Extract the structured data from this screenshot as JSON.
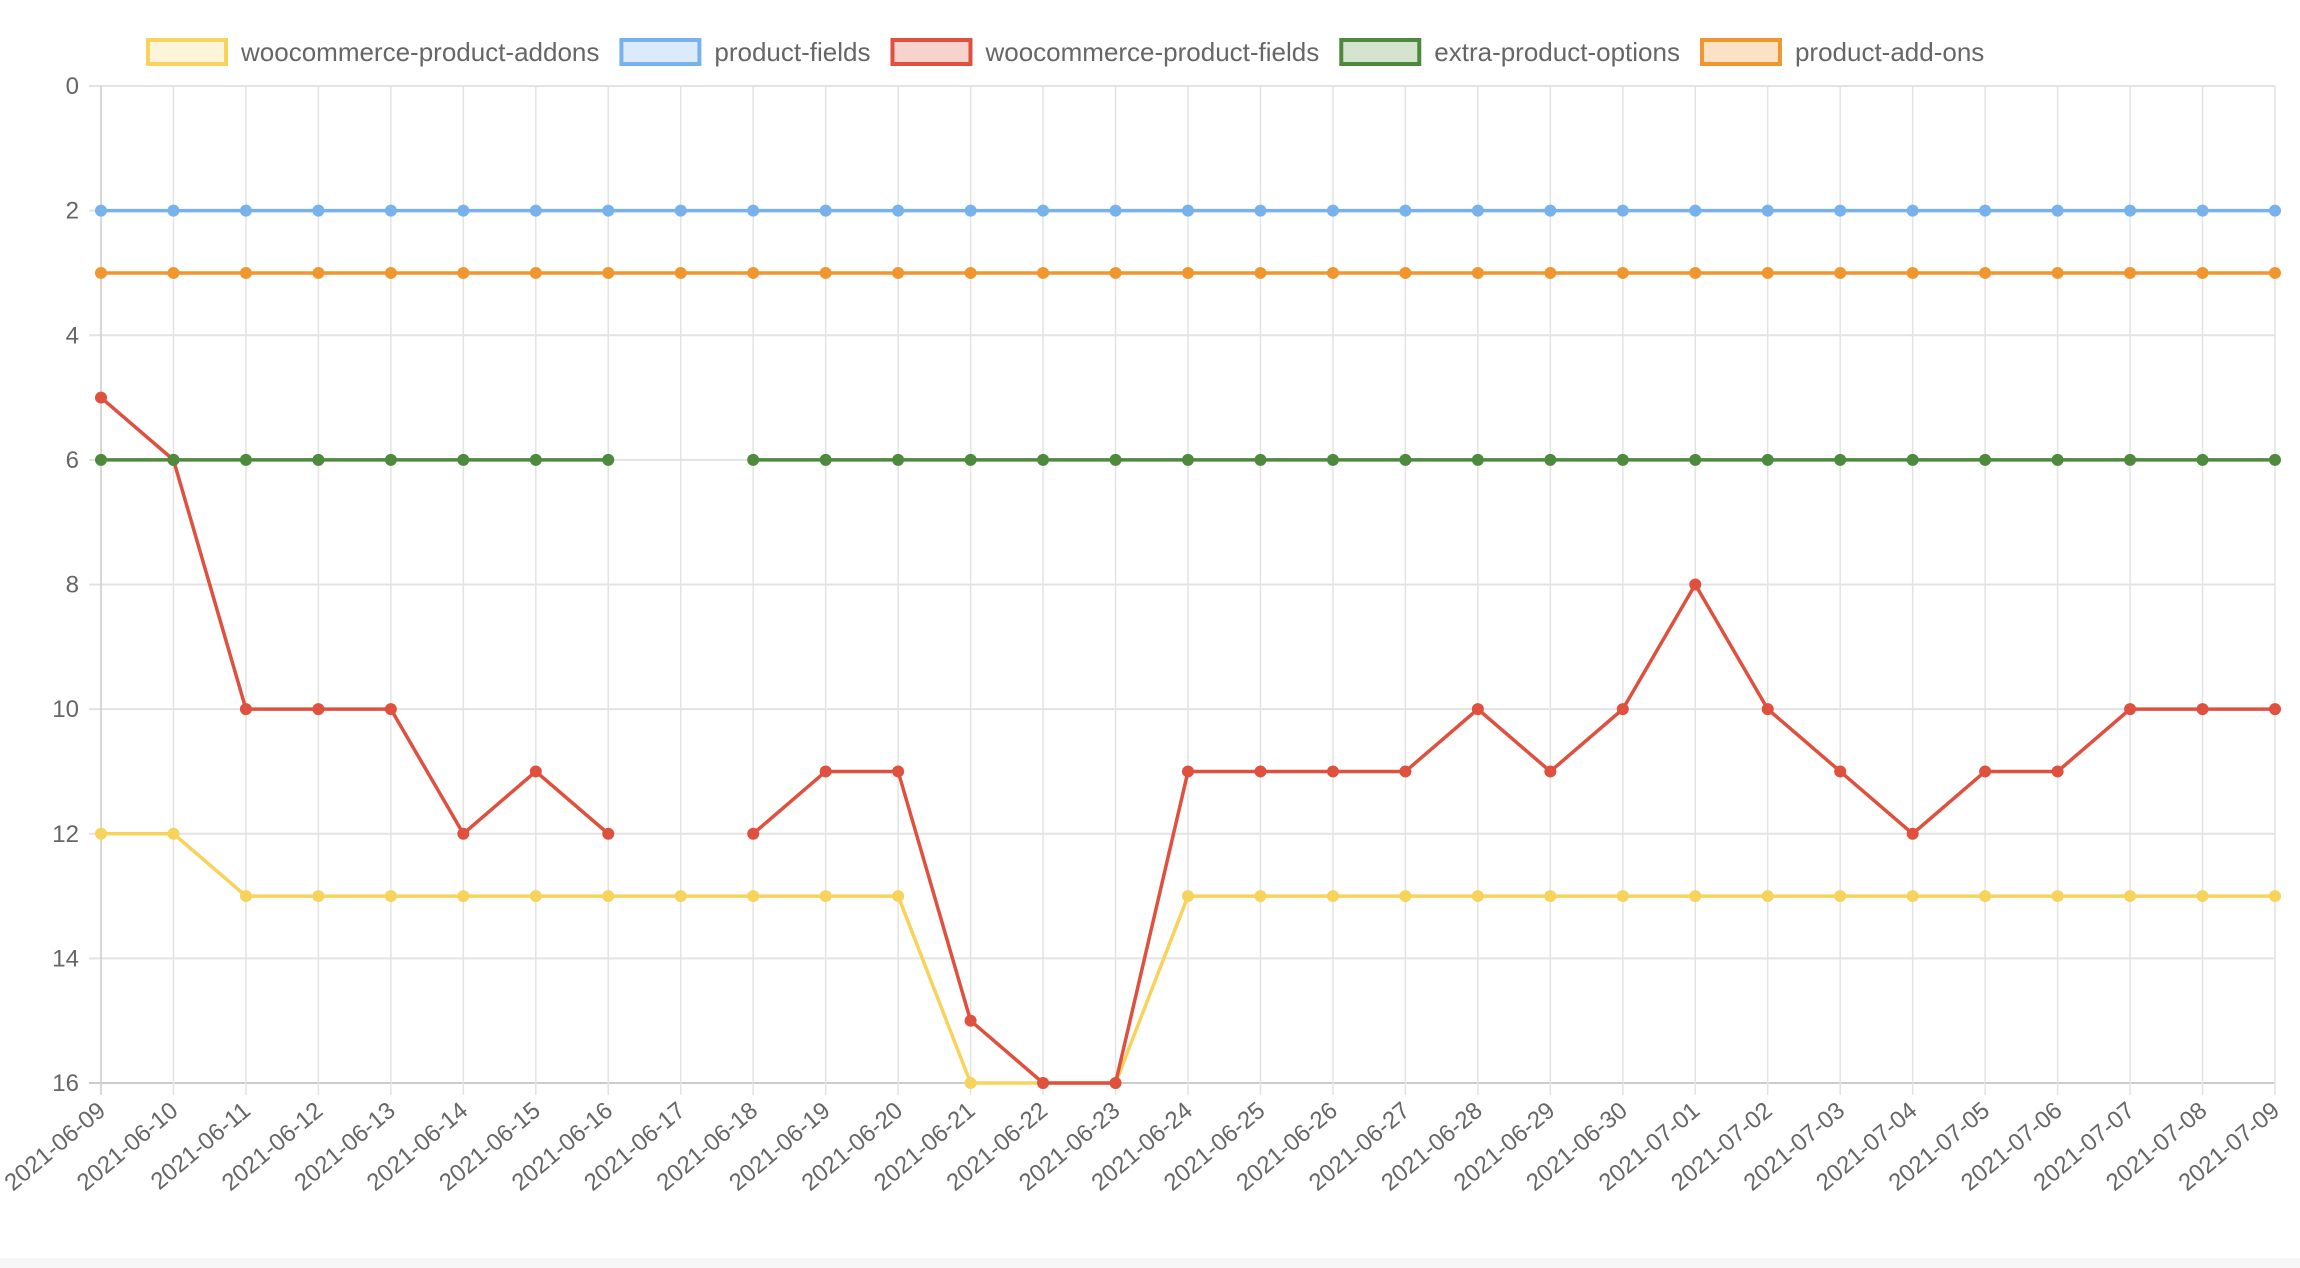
{
  "chart_data": {
    "type": "line",
    "title": "",
    "xlabel": "",
    "ylabel": "",
    "y_reversed": true,
    "ylim": [
      0,
      16
    ],
    "yticks": [
      0,
      2,
      4,
      6,
      8,
      10,
      12,
      14,
      16
    ],
    "grid": true,
    "legend_position": "top",
    "x": [
      "2021-06-09",
      "2021-06-10",
      "2021-06-11",
      "2021-06-12",
      "2021-06-13",
      "2021-06-14",
      "2021-06-15",
      "2021-06-16",
      "2021-06-17",
      "2021-06-18",
      "2021-06-19",
      "2021-06-20",
      "2021-06-21",
      "2021-06-22",
      "2021-06-23",
      "2021-06-24",
      "2021-06-25",
      "2021-06-26",
      "2021-06-27",
      "2021-06-28",
      "2021-06-29",
      "2021-06-30",
      "2021-07-01",
      "2021-07-02",
      "2021-07-03",
      "2021-07-04",
      "2021-07-05",
      "2021-07-06",
      "2021-07-07",
      "2021-07-08",
      "2021-07-09"
    ],
    "series": [
      {
        "name": "woocommerce-product-addons",
        "color": "#f7d35c",
        "fill": "#fdf5d9",
        "values": [
          12,
          12,
          13,
          13,
          13,
          13,
          13,
          13,
          13,
          13,
          13,
          13,
          16,
          16,
          16,
          13,
          13,
          13,
          13,
          13,
          13,
          13,
          13,
          13,
          13,
          13,
          13,
          13,
          13,
          13,
          13
        ]
      },
      {
        "name": "product-fields",
        "color": "#78b2ec",
        "fill": "#dcebfb",
        "values": [
          2,
          2,
          2,
          2,
          2,
          2,
          2,
          2,
          2,
          2,
          2,
          2,
          2,
          2,
          2,
          2,
          2,
          2,
          2,
          2,
          2,
          2,
          2,
          2,
          2,
          2,
          2,
          2,
          2,
          2,
          2
        ]
      },
      {
        "name": "woocommerce-product-fields",
        "color": "#e0503e",
        "fill": "#f8d3ce",
        "values": [
          5,
          6,
          10,
          10,
          10,
          12,
          11,
          12,
          null,
          12,
          11,
          11,
          15,
          16,
          16,
          11,
          11,
          11,
          11,
          10,
          11,
          10,
          8,
          10,
          11,
          12,
          11,
          11,
          10,
          10,
          10
        ]
      },
      {
        "name": "extra-product-options",
        "color": "#4d8a3d",
        "fill": "#d4e4cf",
        "values": [
          6,
          6,
          6,
          6,
          6,
          6,
          6,
          6,
          null,
          6,
          6,
          6,
          6,
          6,
          6,
          6,
          6,
          6,
          6,
          6,
          6,
          6,
          6,
          6,
          6,
          6,
          6,
          6,
          6,
          6,
          6
        ]
      },
      {
        "name": "product-add-ons",
        "color": "#f0962e",
        "fill": "#fce2c4",
        "values": [
          3,
          3,
          3,
          3,
          3,
          3,
          3,
          3,
          3,
          3,
          3,
          3,
          3,
          3,
          3,
          3,
          3,
          3,
          3,
          3,
          3,
          3,
          3,
          3,
          3,
          3,
          3,
          3,
          3,
          3,
          3
        ]
      }
    ]
  }
}
